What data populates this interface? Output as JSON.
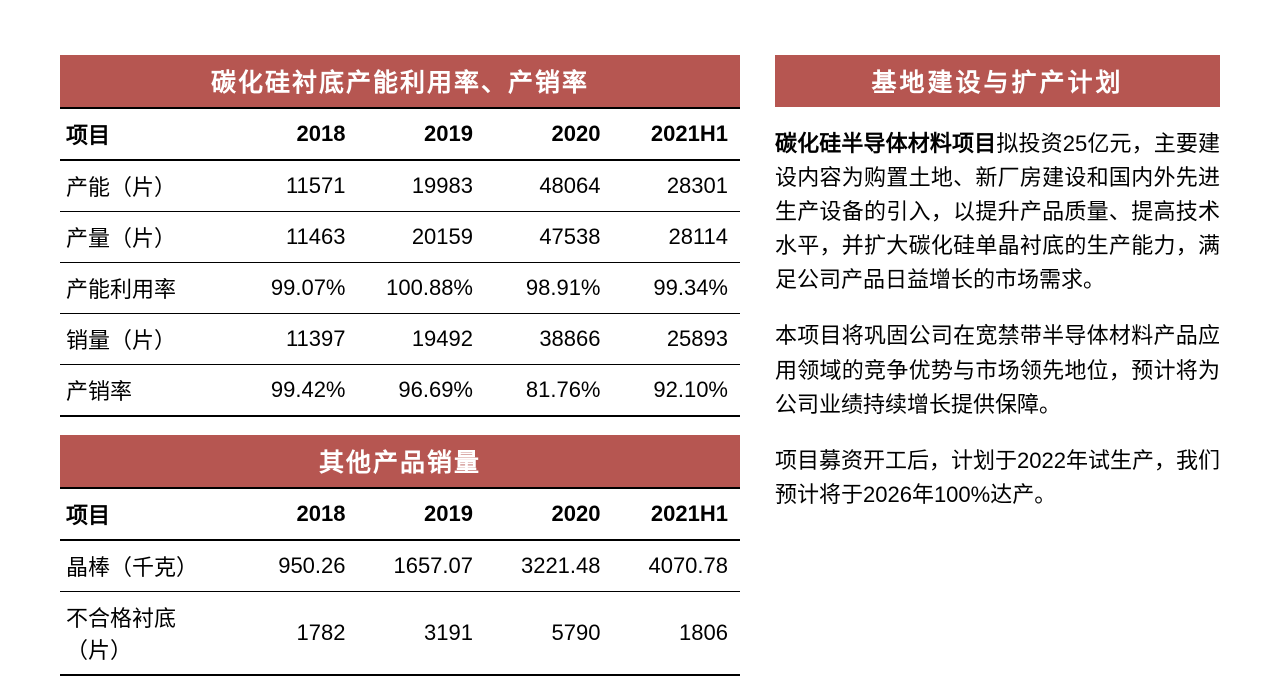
{
  "colors": {
    "header_bg": "#b65651",
    "header_text": "#ffffff",
    "body_text": "#000000",
    "background": "#ffffff",
    "border": "#000000"
  },
  "typography": {
    "base_font_size": 22,
    "header_font_size": 25,
    "font_family": "Microsoft YaHei, SimSun, sans-serif"
  },
  "table1": {
    "title": "碳化硅衬底产能利用率、产销率",
    "columns": [
      "项目",
      "2018",
      "2019",
      "2020",
      "2021H1"
    ],
    "rows": [
      [
        "产能（片）",
        "11571",
        "19983",
        "48064",
        "28301"
      ],
      [
        "产量（片）",
        "11463",
        "20159",
        "47538",
        "28114"
      ],
      [
        "产能利用率",
        "99.07%",
        "100.88%",
        "98.91%",
        "99.34%"
      ],
      [
        "销量（片）",
        "11397",
        "19492",
        "38866",
        "25893"
      ],
      [
        "产销率",
        "99.42%",
        "96.69%",
        "81.76%",
        "92.10%"
      ]
    ]
  },
  "table2": {
    "title": "其他产品销量",
    "columns": [
      "项目",
      "2018",
      "2019",
      "2020",
      "2021H1"
    ],
    "rows": [
      [
        "晶棒（千克）",
        "950.26",
        "1657.07",
        "3221.48",
        "4070.78"
      ],
      [
        "不合格衬底（片）",
        "1782",
        "3191",
        "5790",
        "1806"
      ]
    ]
  },
  "right_panel": {
    "title": "基地建设与扩产计划",
    "para1_bold": "碳化硅半导体材料项目",
    "para1_rest": "拟投资25亿元，主要建设内容为购置土地、新厂房建设和国内外先进生产设备的引入，以提升产品质量、提高技术水平，并扩大碳化硅单晶衬底的生产能力，满足公司产品日益增长的市场需求。",
    "para2": "本项目将巩固公司在宽禁带半导体材料产品应用领域的竞争优势与市场领先地位，预计将为公司业绩持续增长提供保障。",
    "para3": "项目募资开工后，计划于2022年试生产，我们预计将于2026年100%达产。"
  }
}
